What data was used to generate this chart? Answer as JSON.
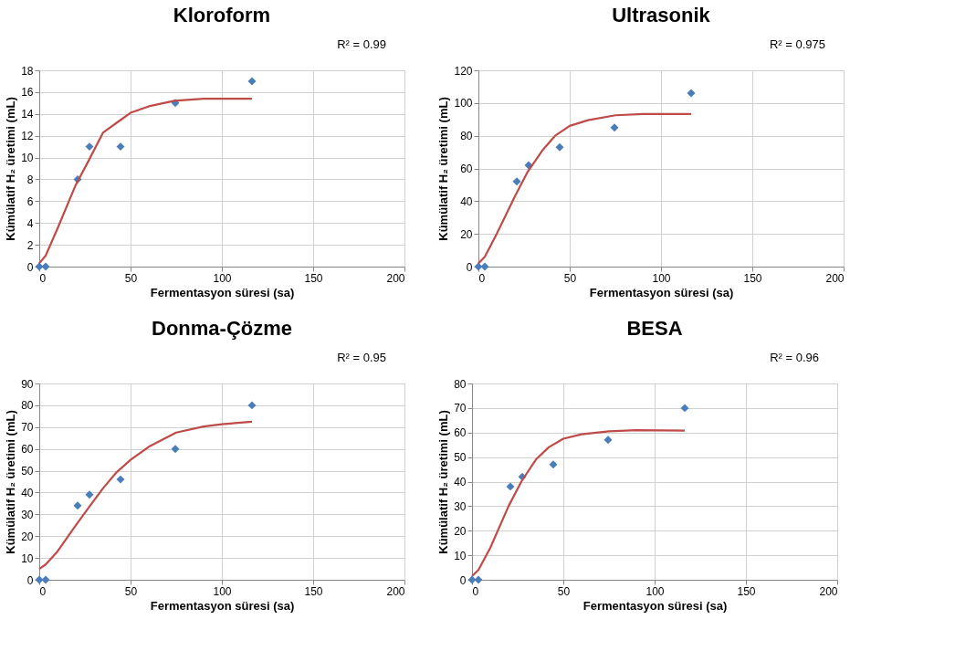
{
  "chart_data": [
    {
      "type": "scatter",
      "title": "Kloroform",
      "xlabel": "Fermentasyon süresi (sa)",
      "ylabel": "Kümülatif H₂ üretimi (mL)",
      "annotations": [
        "R² = 0.99"
      ],
      "xlim": [
        0,
        200
      ],
      "xticks": [
        0,
        50,
        100,
        150,
        200
      ],
      "ylim": [
        0,
        18
      ],
      "yticks": [
        0,
        2,
        4,
        6,
        8,
        10,
        12,
        14,
        16,
        18
      ],
      "grid": true,
      "legend": false,
      "series": [
        {
          "type": "scatter",
          "marker": "diamond",
          "color": "#4a7ebb",
          "x": [
            0,
            3.5,
            21,
            27.5,
            44.5,
            74.5,
            116.5
          ],
          "values": [
            0,
            0,
            8,
            11,
            11,
            15,
            17
          ]
        },
        {
          "type": "line",
          "marker": "none",
          "line_style": "solid",
          "color": "#be4b48",
          "x": [
            0,
            3.5,
            10,
            20,
            27,
            35,
            45,
            50,
            60,
            74,
            90,
            100,
            116.5
          ],
          "values": [
            0.3,
            1,
            3.5,
            7.5,
            9.7,
            12.3,
            13.5,
            14.1,
            14.7,
            15.2,
            15.4,
            15.4,
            15.4
          ]
        }
      ]
    },
    {
      "type": "scatter",
      "title": "Ultrasonik",
      "xlabel": "Fermentasyon süresi (sa)",
      "ylabel": "Kümülatif H₂ üretimi (mL)",
      "annotations": [
        "R² = 0.975"
      ],
      "xlim": [
        0,
        200
      ],
      "xticks": [
        0,
        50,
        100,
        150,
        200
      ],
      "ylim": [
        0,
        120
      ],
      "yticks": [
        0,
        20,
        40,
        60,
        80,
        100,
        120
      ],
      "grid": true,
      "legend": false,
      "series": [
        {
          "type": "scatter",
          "marker": "diamond",
          "color": "#4a7ebb",
          "x": [
            0,
            3.5,
            21,
            27.5,
            44.5,
            74.5,
            116.5
          ],
          "values": [
            0,
            0,
            52,
            62,
            73,
            85,
            106
          ]
        },
        {
          "type": "line",
          "marker": "none",
          "line_style": "solid",
          "color": "#be4b48",
          "x": [
            0,
            3.5,
            10,
            20,
            27,
            35,
            42,
            50,
            60,
            75,
            90,
            116.5
          ],
          "values": [
            2,
            6,
            20,
            43,
            58,
            71,
            80,
            86,
            89.5,
            92.5,
            93.3,
            93.3
          ]
        }
      ]
    },
    {
      "type": "scatter",
      "title": "Donma-Çözme",
      "xlabel": "Fermentasyon süresi (sa)",
      "ylabel": "Kümülatif H₂ üretimi (mL)",
      "annotations": [
        "R² = 0.95"
      ],
      "xlim": [
        0,
        200
      ],
      "xticks": [
        0,
        50,
        100,
        150,
        200
      ],
      "ylim": [
        0,
        90
      ],
      "yticks": [
        0,
        10,
        20,
        30,
        40,
        50,
        60,
        70,
        80,
        90
      ],
      "grid": true,
      "legend": false,
      "series": [
        {
          "type": "scatter",
          "marker": "diamond",
          "color": "#4a7ebb",
          "x": [
            0,
            3.5,
            21,
            27.5,
            44.5,
            74.5,
            116.5
          ],
          "values": [
            0,
            0,
            34,
            39,
            46,
            60,
            80
          ]
        },
        {
          "type": "line",
          "marker": "none",
          "line_style": "solid",
          "color": "#be4b48",
          "x": [
            0,
            3.5,
            10,
            20,
            27,
            35,
            42,
            50,
            60,
            75,
            90,
            100,
            116.5
          ],
          "values": [
            5,
            7,
            13,
            25,
            33,
            42,
            49,
            55,
            61,
            67.5,
            70.3,
            71.3,
            72.5
          ]
        }
      ]
    },
    {
      "type": "scatter",
      "title": "BESA",
      "xlabel": "Fermentasyon süresi (sa)",
      "ylabel": "Kümülatif H₂ üretimi (mL)",
      "annotations": [
        "R² = 0.96"
      ],
      "xlim": [
        0,
        200
      ],
      "xticks": [
        0,
        50,
        100,
        150,
        200
      ],
      "ylim": [
        0,
        80
      ],
      "yticks": [
        0,
        10,
        20,
        30,
        40,
        50,
        60,
        70,
        80
      ],
      "grid": true,
      "legend": false,
      "series": [
        {
          "type": "scatter",
          "marker": "diamond",
          "color": "#4a7ebb",
          "x": [
            0,
            3.5,
            21,
            27.5,
            44.5,
            74.5,
            116.5
          ],
          "values": [
            0,
            0,
            38,
            42,
            47,
            57,
            70
          ]
        },
        {
          "type": "line",
          "marker": "none",
          "line_style": "solid",
          "color": "#be4b48",
          "x": [
            0,
            3.5,
            10,
            20,
            27,
            35,
            42,
            50,
            60,
            75,
            90,
            116.5
          ],
          "values": [
            1.5,
            4,
            13,
            30,
            40,
            49,
            54,
            57.5,
            59.3,
            60.5,
            61,
            60.8
          ]
        }
      ]
    }
  ]
}
